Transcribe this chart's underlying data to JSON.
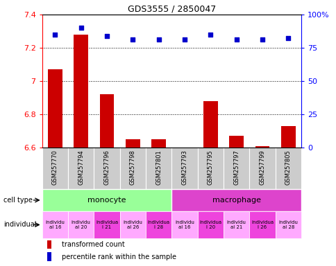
{
  "title": "GDS3555 / 2850047",
  "samples": [
    "GSM257770",
    "GSM257794",
    "GSM257796",
    "GSM257798",
    "GSM257801",
    "GSM257793",
    "GSM257795",
    "GSM257797",
    "GSM257799",
    "GSM257805"
  ],
  "bar_values": [
    7.07,
    7.28,
    6.92,
    6.65,
    6.65,
    6.6,
    6.88,
    6.67,
    6.61,
    6.73
  ],
  "scatter_values": [
    7.28,
    7.32,
    7.27,
    7.25,
    7.25,
    7.25,
    7.28,
    7.25,
    7.25,
    7.26
  ],
  "ylim": [
    6.6,
    7.4
  ],
  "yticks": [
    6.6,
    6.8,
    7.0,
    7.2,
    7.4
  ],
  "right_yticks": [
    0,
    25,
    50,
    75,
    100
  ],
  "right_ylabels": [
    "0",
    "25",
    "50",
    "75",
    "100%"
  ],
  "bar_color": "#cc0000",
  "scatter_color": "#0000cc",
  "xticklabel_bg": "#cccccc",
  "cell_types": [
    {
      "label": "monocyte",
      "start": 0,
      "end": 5,
      "color": "#99ff99"
    },
    {
      "label": "macrophage",
      "start": 5,
      "end": 10,
      "color": "#dd44cc"
    }
  ],
  "ind_labels": [
    "individu\nal 16",
    "individu\nal 20",
    "individua\nl 21",
    "individu\nal 26",
    "individua\nl 28",
    "individu\nal 16",
    "individua\nl 20",
    "individu\nal 21",
    "individua\nl 26",
    "individu\nal 28"
  ],
  "ind_colors": [
    "#ffaaff",
    "#ffaaff",
    "#ee44dd",
    "#ffaaff",
    "#ee44dd",
    "#ffaaff",
    "#ee44dd",
    "#ffaaff",
    "#ee44dd",
    "#ffaaff"
  ],
  "legend_items": [
    {
      "label": "transformed count",
      "color": "#cc0000"
    },
    {
      "label": "percentile rank within the sample",
      "color": "#0000cc"
    }
  ]
}
